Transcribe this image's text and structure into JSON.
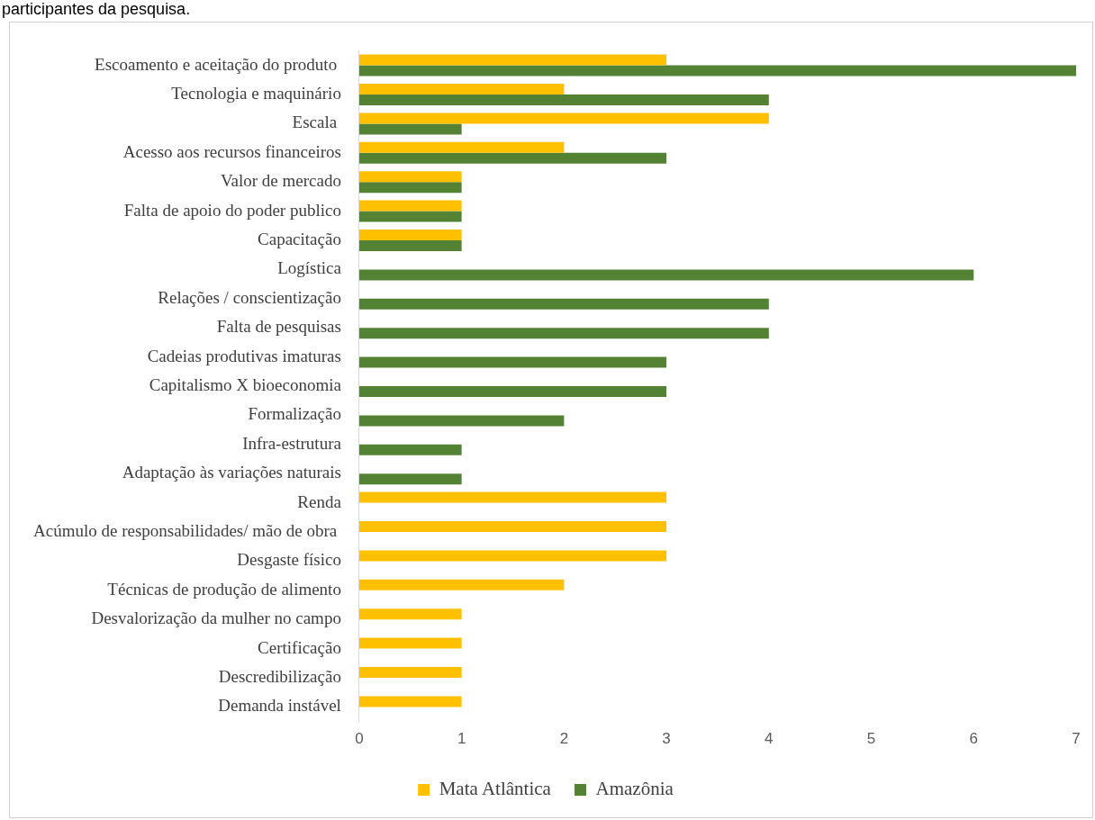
{
  "chart_data": {
    "type": "bar",
    "orientation": "horizontal",
    "annotations": [
      "participantes da pesquisa."
    ],
    "categories": [
      "Escoamento e aceitação do produto ",
      "Tecnologia e maquinário",
      "Escala ",
      "Acesso aos recursos financeiros",
      "Valor de mercado",
      "Falta de apoio do poder publico",
      "Capacitação",
      "Logística",
      "Relações / conscientização",
      "Falta de pesquisas",
      "Cadeias produtivas imaturas",
      "Capitalismo X bioeconomia",
      "Formalização",
      "Infra-estrutura",
      "Adaptação às variações naturais",
      "Renda",
      "Acúmulo de responsabilidades/ mão de obra ",
      "Desgaste físico",
      "Técnicas de produção de alimento",
      "Desvalorização da mulher no campo",
      "Certificação",
      "Descredibilização",
      "Demanda instável"
    ],
    "series": [
      {
        "name": "Mata Atlântica",
        "color": "#ffc000",
        "values": [
          3,
          2,
          4,
          2,
          1,
          1,
          1,
          null,
          null,
          null,
          null,
          null,
          null,
          null,
          null,
          3,
          3,
          3,
          2,
          1,
          1,
          1,
          1
        ]
      },
      {
        "name": "Amazônia",
        "color": "#548235",
        "values": [
          7,
          4,
          1,
          3,
          1,
          1,
          1,
          6,
          4,
          4,
          3,
          3,
          2,
          1,
          1,
          null,
          null,
          null,
          null,
          null,
          null,
          null,
          null
        ]
      }
    ],
    "xlim": [
      0,
      7
    ],
    "xticks": [
      0,
      1,
      2,
      3,
      4,
      5,
      6,
      7
    ],
    "grid": false,
    "legend": "bottom"
  }
}
